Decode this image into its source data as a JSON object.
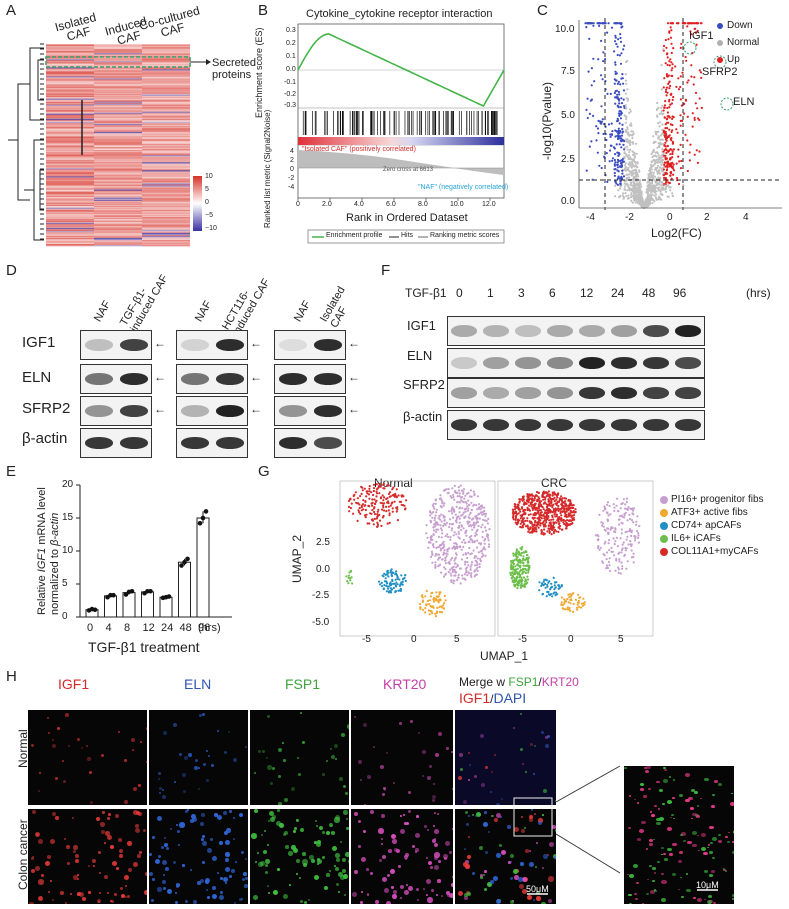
{
  "panels": {
    "A": "A",
    "B": "B",
    "C": "C",
    "D": "D",
    "E": "E",
    "F": "F",
    "G": "G",
    "H": "H"
  },
  "A": {
    "columns": [
      "Isolated\nCAF",
      "Induced\nCAF",
      "Co-cultured\nCAF"
    ],
    "col1": "Isolated",
    "col1b": "CAF",
    "col2": "Induced",
    "col2b": "CAF",
    "col3": "Co-cultured",
    "col3b": "CAF",
    "secreted": "Secreted",
    "secreted2": "proteins",
    "scale": [
      "10",
      "5",
      "0",
      "−5",
      "−10"
    ],
    "colors": {
      "high": "#d73027",
      "low": "#3a2fa0"
    }
  },
  "B": {
    "title": "Cytokine_cytokine receptor interaction",
    "es_label": "Enrichment score (ES)",
    "rank_label": "Ranked list metric (Signal2Noise)",
    "xlabel": "Rank in Ordered Dataset",
    "es_ticks": [
      "0.3",
      "0.2",
      "0.1",
      "0.0",
      "-0.1",
      "-0.2",
      "-0.3"
    ],
    "rank_ticks": [
      "4",
      "2",
      "0",
      "-2",
      "-4"
    ],
    "x_ticks": [
      "0",
      "2.0",
      "4.0",
      "6.0",
      "8.0",
      "10.0",
      "12.0"
    ],
    "pos_label": "\"Isolated CAF\" (positively correlated)",
    "zero_cross": "Zero cross at 6613",
    "neg_label": "\"NAF\" (negatively correlated)",
    "legend": [
      "Enrichment profile",
      "Hits",
      "Ranking metric scores"
    ]
  },
  "C": {
    "ylabel": "-log10(Pvalue)",
    "xlabel": "Log2(FC)",
    "x_ticks": [
      "-4",
      "-2",
      "0",
      "2",
      "4"
    ],
    "y_ticks": [
      "10.0",
      "7.5",
      "5.0",
      "2.5",
      "0.0"
    ],
    "legend": [
      "Down",
      "Normal",
      "Up"
    ],
    "legend_colors": [
      "#3b4cc0",
      "#b0b0b0",
      "#e02020"
    ],
    "genes": [
      "IGF1",
      "SFRP2",
      "ELN"
    ]
  },
  "D": {
    "rows": [
      "IGF1",
      "ELN",
      "SFRP2",
      "β-actin"
    ],
    "groups": [
      {
        "lanes": [
          "NAF",
          "TGF-β1-\ninduced CAF"
        ]
      },
      {
        "lanes": [
          "NAF",
          "HCT116-\ninduced CAF"
        ]
      },
      {
        "lanes": [
          "NAF",
          "Isolated\nCAF"
        ]
      }
    ],
    "g1a": "NAF",
    "g1b": "TGF-β1-",
    "g1c": "induced CAF",
    "g2a": "NAF",
    "g2b": "HCT116-",
    "g2c": "induced CAF",
    "g3a": "NAF",
    "g3b": "Isolated",
    "g3c": "CAF"
  },
  "F": {
    "treatment": "TGF-β1",
    "timepoints": [
      "0",
      "1",
      "3",
      "6",
      "12",
      "24",
      "48",
      "96"
    ],
    "unit": "(hrs)",
    "rows": [
      "IGF1",
      "ELN",
      "SFRP2",
      "β-actin"
    ]
  },
  "E": {
    "ylabel1": "Relative",
    "ylabel2": "mRNA level",
    "ylabel_gene": "IGF1",
    "ylabel3": "normalized to",
    "ylabel_gene2": "β-actin",
    "xlabel": "TGF-β1 treatment",
    "unit": "(hrs)",
    "y_ticks": [
      "20",
      "15",
      "10",
      "5",
      "0"
    ]
  },
  "chart_data": {
    "type": "bar",
    "categories": [
      "0",
      "4",
      "8",
      "12",
      "24",
      "48",
      "96"
    ],
    "values": [
      1.1,
      3.2,
      3.7,
      3.8,
      3.0,
      8.3,
      15.0
    ],
    "points": [
      [
        1.0,
        1.2,
        1.1
      ],
      [
        3.0,
        3.3,
        3.3
      ],
      [
        3.4,
        3.8,
        3.9
      ],
      [
        3.6,
        3.9,
        3.9
      ],
      [
        2.9,
        3.0,
        3.1
      ],
      [
        7.8,
        8.3,
        8.8
      ],
      [
        14.2,
        15.0,
        16.0
      ]
    ],
    "xlabel": "TGF-β1 treatment",
    "ylabel": "Relative IGF1 mRNA level normalized to β-actin",
    "ylim": [
      0,
      20
    ]
  },
  "G": {
    "titles": [
      "Normal",
      "CRC"
    ],
    "xlabel": "UMAP_1",
    "ylabel": "UMAP_2",
    "y_ticks": [
      "2.5",
      "0.0",
      "-2.5",
      "-5.0"
    ],
    "x_ticks": [
      "-5",
      "0",
      "5"
    ],
    "legend": [
      "PI16+ progenitor fibs",
      "ATF3+ active fibs",
      "CD74+ apCAFs",
      "IL6+ iCAFs",
      "COL11A1+myCAFs"
    ],
    "legend_colors": [
      "#c79fcf",
      "#f0a830",
      "#1f8fc4",
      "#6cbf4a",
      "#d62a2a"
    ]
  },
  "H": {
    "cols": [
      "IGF1",
      "ELN",
      "FSP1",
      "KRT20"
    ],
    "col_colors": [
      "#d62a2a",
      "#2f56b0",
      "#3fa33f",
      "#c43fa8"
    ],
    "merge_w": "Merge w",
    "merge_fsp1": "FSP1",
    "merge_slash": "/",
    "merge_krt20": "KRT20",
    "merge_igf1": "IGF1",
    "merge_slash2": "/",
    "merge_dapi": "DAPI",
    "rows": [
      "Normal",
      "Colon cancer"
    ],
    "scale1": "50μM",
    "scale2": "10μM"
  }
}
